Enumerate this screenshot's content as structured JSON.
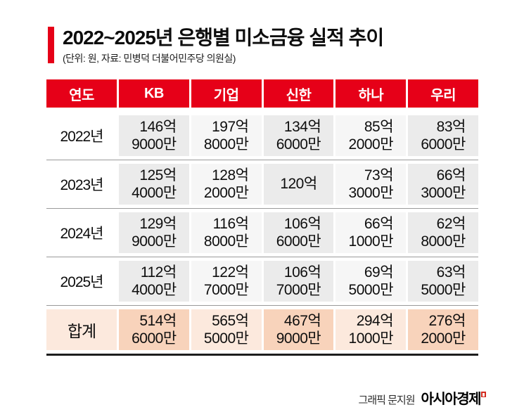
{
  "title": {
    "text": "2022~2025년 은행별 미소금융 실적 추이",
    "subtitle": "(단위: 원, 자료: 민병덕 더불어민주당 의원실)"
  },
  "table": {
    "headers": [
      "연도",
      "KB",
      "기업",
      "신한",
      "하나",
      "우리"
    ],
    "rows": [
      {
        "year": "2022년",
        "values": [
          [
            "146억",
            "9000만"
          ],
          [
            "197억",
            "8000만"
          ],
          [
            "134억",
            "6000만"
          ],
          [
            "85억",
            "2000만"
          ],
          [
            "83억",
            "6000만"
          ]
        ]
      },
      {
        "year": "2023년",
        "values": [
          [
            "125억",
            "4000만"
          ],
          [
            "128억",
            "2000만"
          ],
          [
            "120억"
          ],
          [
            "73억",
            "3000만"
          ],
          [
            "66억",
            "3000만"
          ]
        ]
      },
      {
        "year": "2024년",
        "values": [
          [
            "129억",
            "9000만"
          ],
          [
            "116억",
            "8000만"
          ],
          [
            "106억",
            "6000만"
          ],
          [
            "66억",
            "1000만"
          ],
          [
            "62억",
            "8000만"
          ]
        ]
      },
      {
        "year": "2025년",
        "values": [
          [
            "112억",
            "4000만"
          ],
          [
            "122억",
            "7000만"
          ],
          [
            "106억",
            "7000만"
          ],
          [
            "69억",
            "5000만"
          ],
          [
            "63억",
            "5000만"
          ]
        ]
      }
    ],
    "total": {
      "label": "합계",
      "values": [
        [
          "514억",
          "6000만"
        ],
        [
          "565억",
          "5000만"
        ],
        [
          "467억",
          "9000만"
        ],
        [
          "294억",
          "1000만"
        ],
        [
          "276억",
          "2000만"
        ]
      ]
    }
  },
  "footer": {
    "credit": "그래픽 문지원",
    "brand": "아시아경제"
  },
  "colors": {
    "accent_red": "#e60018",
    "cell_gray_dark": "#ebebeb",
    "cell_gray_light": "#f6f6f6",
    "total_peach_dark": "#f8d3bb",
    "total_peach_light": "#fce9dd",
    "row_line": "#9a9a9a",
    "bottom_line": "#1d1d1d",
    "logo_mark_red": "#d22a1e"
  },
  "chart_data": {
    "type": "table",
    "title": "2022~2025년 은행별 미소금융 실적 추이",
    "unit_note": "단위: 원, 자료: 민병덕 더불어민주당 의원실",
    "columns": [
      "연도",
      "KB",
      "기업",
      "신한",
      "하나",
      "우리"
    ],
    "rows": [
      {
        "연도": "2022년",
        "KB": "146억 9000만",
        "기업": "197억 8000만",
        "신한": "134억 6000만",
        "하나": "85억 2000만",
        "우리": "83억 6000만"
      },
      {
        "연도": "2023년",
        "KB": "125억 4000만",
        "기업": "128억 2000만",
        "신한": "120억",
        "하나": "73억 3000만",
        "우리": "66억 3000만"
      },
      {
        "연도": "2024년",
        "KB": "129억 9000만",
        "기업": "116억 8000만",
        "신한": "106억 6000만",
        "하나": "66억 1000만",
        "우리": "62억 8000만"
      },
      {
        "연도": "2025년",
        "KB": "112억 4000만",
        "기업": "122억 7000만",
        "신한": "106억 7000만",
        "하나": "69억 5000만",
        "우리": "63억 5000만"
      },
      {
        "연도": "합계",
        "KB": "514억 6000만",
        "기업": "565억 5000만",
        "신한": "467억 9000만",
        "하나": "294억 1000만",
        "우리": "276억 2000만"
      }
    ],
    "numeric_values_eokwon": {
      "series": [
        {
          "name": "KB",
          "values": [
            146.9,
            125.4,
            129.9,
            112.4
          ],
          "total": 514.6
        },
        {
          "name": "기업",
          "values": [
            197.8,
            128.2,
            116.8,
            122.7
          ],
          "total": 565.5
        },
        {
          "name": "신한",
          "values": [
            134.6,
            120.0,
            106.6,
            106.7
          ],
          "total": 467.9
        },
        {
          "name": "하나",
          "values": [
            85.2,
            73.3,
            66.1,
            69.5
          ],
          "total": 294.1
        },
        {
          "name": "우리",
          "values": [
            83.6,
            66.3,
            62.8,
            63.5
          ],
          "total": 276.2
        }
      ],
      "categories": [
        "2022년",
        "2023년",
        "2024년",
        "2025년"
      ]
    }
  }
}
